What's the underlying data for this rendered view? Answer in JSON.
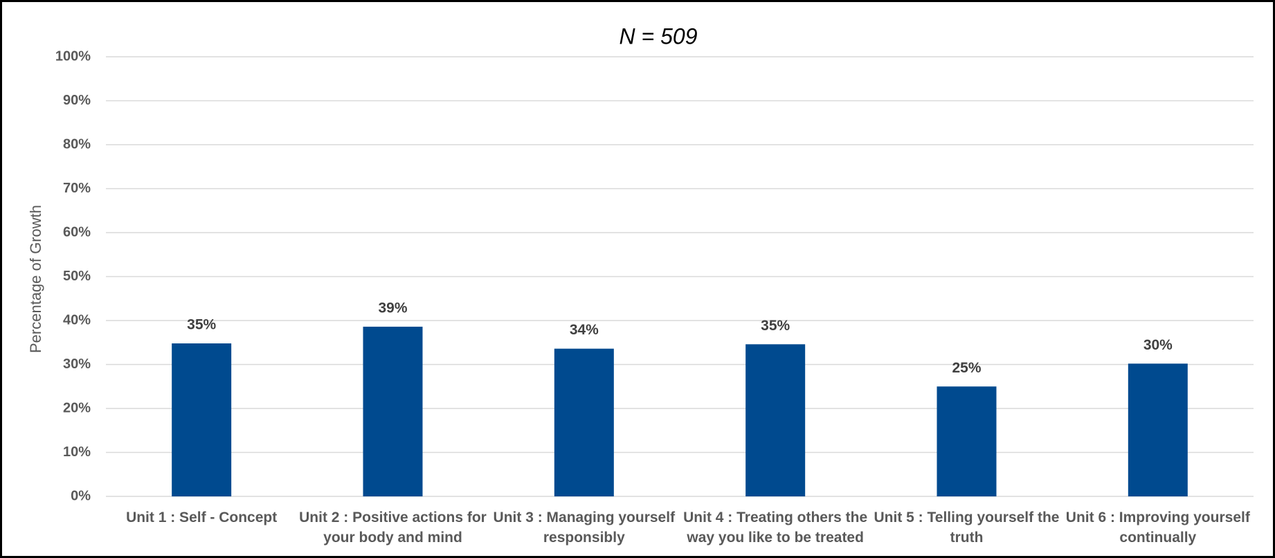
{
  "chart_data": {
    "type": "bar",
    "title": "N = 509",
    "y_label": "Percentage of Growth",
    "categories": [
      "Unit 1 : Self - Concept",
      "Unit 2 : Positive actions for your body and mind",
      "Unit 3 : Managing yourself responsibly",
      "Unit 4 : Treating others the way you like to be treated",
      "Unit 5 : Telling yourself the truth",
      "Unit 6 : Improving yourself continually"
    ],
    "values": [
      34.8,
      38.6,
      33.6,
      34.6,
      25.0,
      30.2
    ],
    "value_labels": [
      "35%",
      "39%",
      "34%",
      "35%",
      "25%",
      "30%"
    ],
    "color": "#004a8f",
    "ylim": [
      0,
      100
    ],
    "yticks": [
      {
        "value": 0,
        "label": "0%"
      },
      {
        "value": 10,
        "label": "10%"
      },
      {
        "value": 20,
        "label": "20%"
      },
      {
        "value": 30,
        "label": "30%"
      },
      {
        "value": 40,
        "label": "40%"
      },
      {
        "value": 50,
        "label": "50%"
      },
      {
        "value": 60,
        "label": "60%"
      },
      {
        "value": 70,
        "label": "70%"
      },
      {
        "value": 80,
        "label": "80%"
      },
      {
        "value": 90,
        "label": "90%"
      },
      {
        "value": 100,
        "label": "100%"
      }
    ],
    "grid": true
  }
}
